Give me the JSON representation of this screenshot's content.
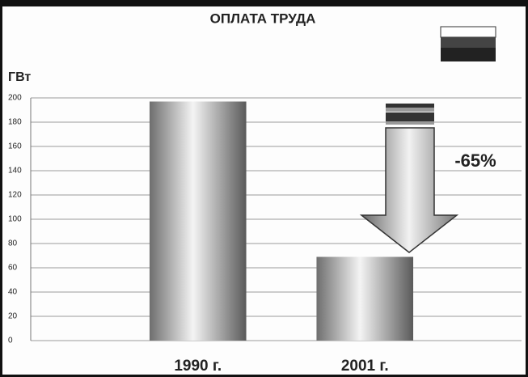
{
  "chart_data": {
    "type": "bar",
    "title": "ОПЛАТА ТРУДА",
    "y_label": "ГВт",
    "categories": [
      "1990 г.",
      "2001 г."
    ],
    "values": [
      197,
      69
    ],
    "annotation": "-65%",
    "ylim": [
      0,
      200
    ],
    "yticks": [
      0,
      20,
      40,
      60,
      80,
      100,
      120,
      140,
      160,
      180,
      200
    ],
    "grid": true
  }
}
